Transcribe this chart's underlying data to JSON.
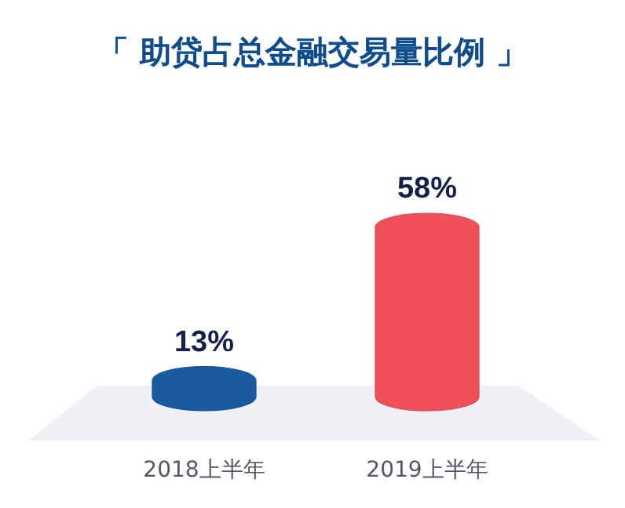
{
  "chart_data": {
    "type": "bar",
    "title": "「 助贷占总金融交易量比例 」",
    "categories": [
      "2018上半年",
      "2019上半年"
    ],
    "values": [
      13,
      58
    ],
    "colors": [
      "#1a5aa0",
      "#f0505a"
    ],
    "value_labels": [
      "13%",
      "58%"
    ]
  }
}
